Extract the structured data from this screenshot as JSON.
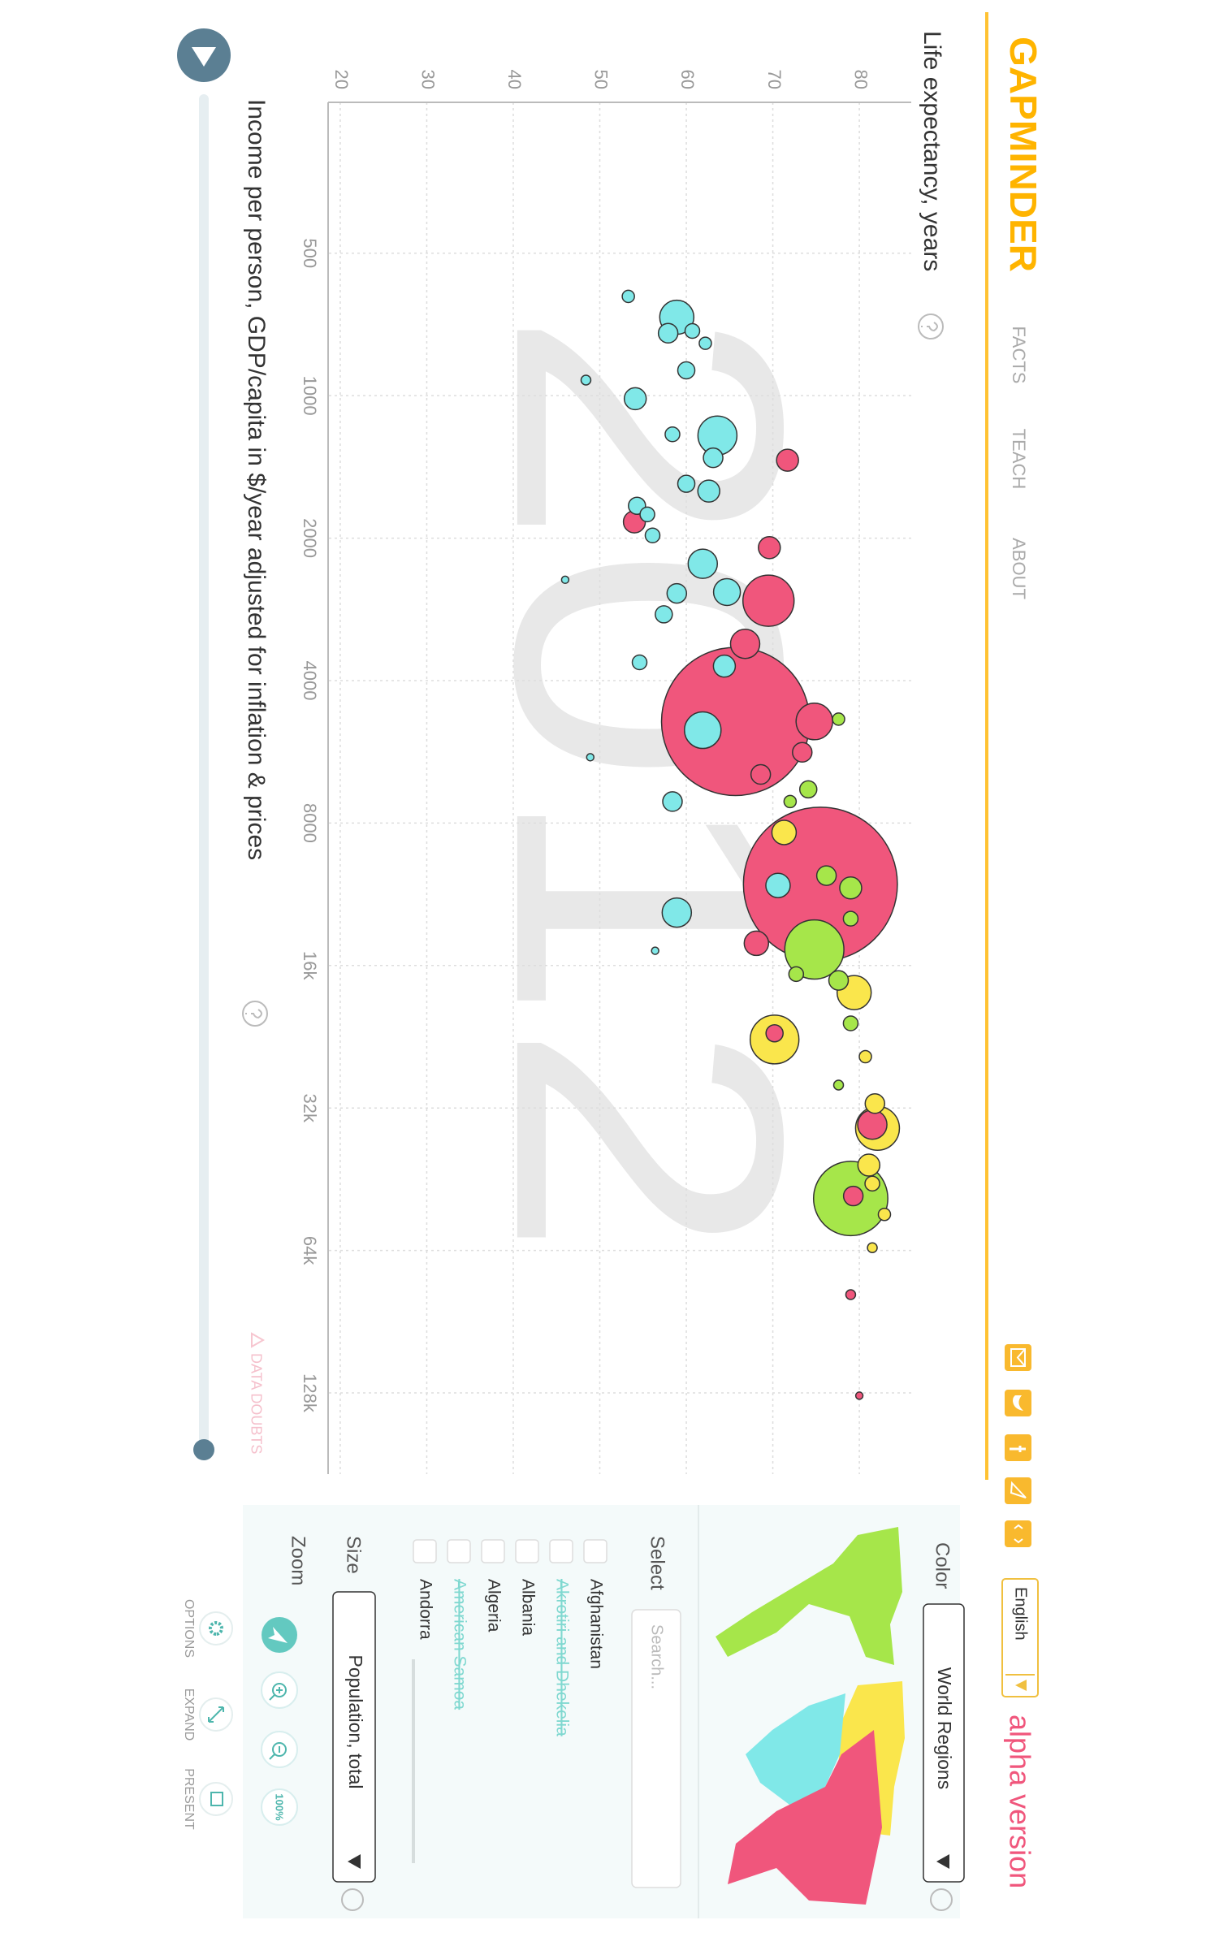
{
  "header": {
    "logo": "GAPMINDER",
    "nav": [
      "FACTS",
      "TEACH",
      "ABOUT"
    ],
    "language": "English",
    "badge": "alpha version"
  },
  "chart_data": {
    "type": "bubble",
    "y_label": "Life expectancy, years",
    "x_label": "Income per person, GDP/capita in $/year adjusted for inflation & prices",
    "year": "2012",
    "note": "DATA DOUBTS",
    "xscale": "log",
    "xlim": [
      240,
      190000
    ],
    "ylim": [
      18.6,
      86
    ],
    "xticks": [
      500,
      1000,
      2000,
      4000,
      8000,
      {
        "value": 16000,
        "label": "16k"
      },
      {
        "value": 32000,
        "label": "32k"
      },
      {
        "value": 64000,
        "label": "64k"
      },
      {
        "value": 128000,
        "label": "128k"
      }
    ],
    "yticks": [
      20,
      30,
      40,
      50,
      60,
      70,
      80
    ],
    "grid": true,
    "series": [
      {
        "color": "#80e8e8",
        "x": [
          617,
          683,
          738,
          730,
          775,
          884,
          927,
          1015,
          1214,
          1207,
          1353,
          1535,
          1591,
          1709,
          1782,
          1974,
          2266,
          2449,
          2600,
          2617,
          2898,
          3660,
          3728,
          5091,
          5808,
          7205,
          10837,
          12365,
          14890
        ],
        "values": [
          53.3,
          58.9,
          57.9,
          60.7,
          62.2,
          60.0,
          48.4,
          54.1,
          63.6,
          58.4,
          63.1,
          60.0,
          62.6,
          54.3,
          55.5,
          56.1,
          61.9,
          46.0,
          64.7,
          58.9,
          57.4,
          54.6,
          64.4,
          61.9,
          48.9,
          58.4,
          70.6,
          58.9,
          56.4
        ],
        "sizes": [
          8.5,
          66.3,
          21.6,
          12.2,
          8.5,
          16.6,
          5.4,
          27.4,
          86.5,
          12.2,
          21.6,
          16.6,
          27.4,
          16.6,
          12.2,
          12.2,
          48.7,
          3.0,
          40.9,
          21.6,
          16.6,
          12.2,
          27.4,
          76.1,
          3.0,
          21.6,
          33.8,
          48.7,
          3.0
        ]
      },
      {
        "color": "#f0567c",
        "x": [
          1369,
          1848,
          2095,
          2712,
          3345,
          4880,
          4880,
          5670,
          10770,
          14360,
          22250,
          49100,
          34700,
          79350,
          129700,
          6315
        ],
        "values": [
          71.7,
          54.0,
          69.6,
          69.5,
          66.8,
          65.7,
          74.8,
          73.4,
          75.5,
          68.1,
          70.2,
          79.3,
          81.5,
          79.0,
          80.0,
          68.6
        ],
        "sizes": [
          27.4,
          27.4,
          27.4,
          149,
          48.7,
          1250,
          76.1,
          21.6,
          1350,
          33.8,
          16.6,
          21.6,
          48.7,
          5.4,
          3.0,
          21.6
        ]
      },
      {
        "color": "#fae64c",
        "x": [
          8375,
          18250,
          22930,
          24930,
          31320,
          35320,
          42250,
          46230,
          53700,
          63150
        ],
        "values": [
          71.3,
          79.4,
          70.2,
          80.7,
          81.8,
          82.1,
          81.1,
          81.5,
          82.9,
          81.5
        ],
        "sizes": [
          33.8,
          66.3,
          135.2,
          8.5,
          21.6,
          109.5,
          27.4,
          12.2,
          8.5,
          5.4
        ]
      },
      {
        "color": "#a6e64a",
        "x": [
          4825,
          6790,
          10330,
          10970,
          14800,
          17200,
          21200,
          49700,
          28620,
          7205,
          12740,
          16680
        ],
        "values": [
          77.6,
          74.1,
          76.2,
          79.0,
          74.8,
          77.6,
          79.0,
          79.0,
          77.6,
          72.0,
          79.0,
          72.7
        ],
        "sizes": [
          8.5,
          16.6,
          21.6,
          27.4,
          199,
          21.6,
          12.2,
          314,
          5.4,
          8.5,
          12.2,
          12.2
        ]
      }
    ]
  },
  "panel": {
    "color_label": "Color",
    "color_value": "World Regions",
    "select_label": "Select",
    "search_placeholder": "Search...",
    "countries": [
      {
        "name": "Afghanistan",
        "available": true
      },
      {
        "name": "Akrotiri and Dhekelia",
        "available": false
      },
      {
        "name": "Albania",
        "available": true
      },
      {
        "name": "Algeria",
        "available": true
      },
      {
        "name": "American Samoa",
        "available": false
      },
      {
        "name": "Andorra",
        "available": true
      }
    ],
    "size_label": "Size",
    "size_value": "Population, total",
    "zoom_label": "Zoom",
    "zoom_reset": "100%",
    "toolbar": [
      "OPTIONS",
      "EXPAND",
      "PRESENT"
    ]
  }
}
